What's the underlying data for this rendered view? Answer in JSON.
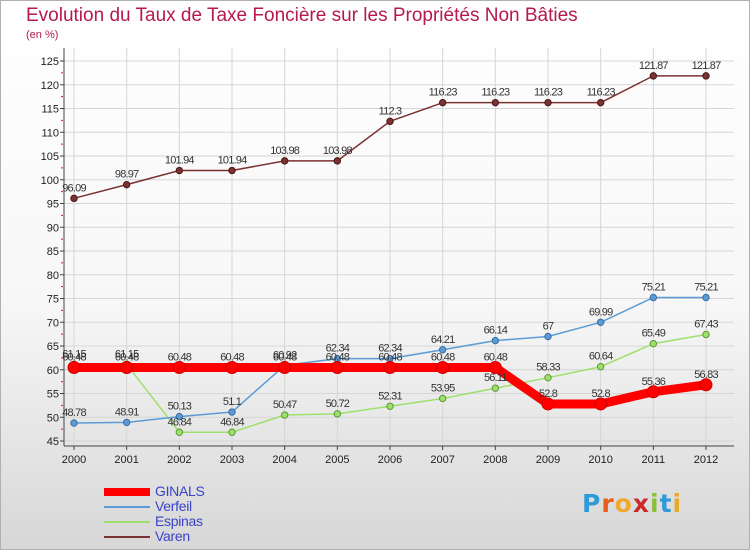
{
  "title": "Evolution du Taux de Taxe Foncière sur les Propriétés Non Bâties",
  "subtitle": "(en %)",
  "logo": {
    "text": "Proxiti",
    "letters": [
      "P",
      "r",
      "o",
      "x",
      "i",
      "t",
      "i"
    ],
    "letter_colors": [
      "#2e9ad8",
      "#e85e1c",
      "#f0a830",
      "#cc2a2a",
      "#8bbf3a",
      "#2e9ad8",
      "#e8a82a"
    ]
  },
  "chart_data": {
    "type": "line",
    "x": [
      "2000",
      "2001",
      "2002",
      "2003",
      "2004",
      "2005",
      "2006",
      "2007",
      "2008",
      "2009",
      "2010",
      "2011",
      "2012"
    ],
    "ylim": [
      45,
      125
    ],
    "yticks": [
      "45",
      "50",
      "55",
      "60",
      "65",
      "70",
      "75",
      "80",
      "85",
      "90",
      "95",
      "100",
      "105",
      "110",
      "115",
      "120",
      "125"
    ],
    "grid": true,
    "legend_position": "bottom-left",
    "series": [
      {
        "name": "GINALS",
        "color": "#ff0000",
        "values": [
          60.48,
          60.48,
          60.48,
          60.48,
          60.48,
          60.48,
          60.48,
          60.48,
          60.48,
          52.8,
          52.8,
          55.36,
          56.83
        ],
        "labels": [
          "60.48",
          "60.48",
          "60.48",
          "60.48",
          "60.48",
          "60.48",
          "60.48",
          "60.48",
          "60.48",
          "52.8",
          "52.8",
          "55.36",
          "56.83"
        ]
      },
      {
        "name": "Verfeil",
        "color": "#5b9bd5",
        "values": [
          48.78,
          48.91,
          50.13,
          51.1,
          60.92,
          62.34,
          62.34,
          64.21,
          66.14,
          67,
          69.99,
          75.21,
          75.21
        ],
        "labels": [
          "48.78",
          "48.91",
          "50.13",
          "51.1",
          "60.92",
          "62.34",
          "62.34",
          "64.21",
          "66.14",
          "67",
          "69.99",
          "75.21",
          "75.21"
        ]
      },
      {
        "name": "Espinas",
        "color": "#9ee06d",
        "values": [
          61.15,
          61.15,
          46.84,
          46.84,
          50.47,
          50.72,
          52.31,
          53.95,
          56.11,
          58.33,
          60.64,
          65.49,
          67.43
        ],
        "labels": [
          "61.15",
          "61.15",
          "46.84",
          "46.84",
          "50.47",
          "50.72",
          "52.31",
          "53.95",
          "56.11",
          "58.33",
          "60.64",
          "65.49",
          "67.43"
        ]
      },
      {
        "name": "Varen",
        "color": "#7a3232",
        "values": [
          96.09,
          98.97,
          101.94,
          101.94,
          103.98,
          103.98,
          112.3,
          116.23,
          116.23,
          116.23,
          116.23,
          121.87,
          121.87
        ],
        "labels": [
          "96.09",
          "98.97",
          "101.94",
          "101.94",
          "103.98",
          "103.98",
          "112.3",
          "116.23",
          "116.23",
          "116.23",
          "116.23",
          "121.87",
          "121.87"
        ]
      }
    ]
  }
}
